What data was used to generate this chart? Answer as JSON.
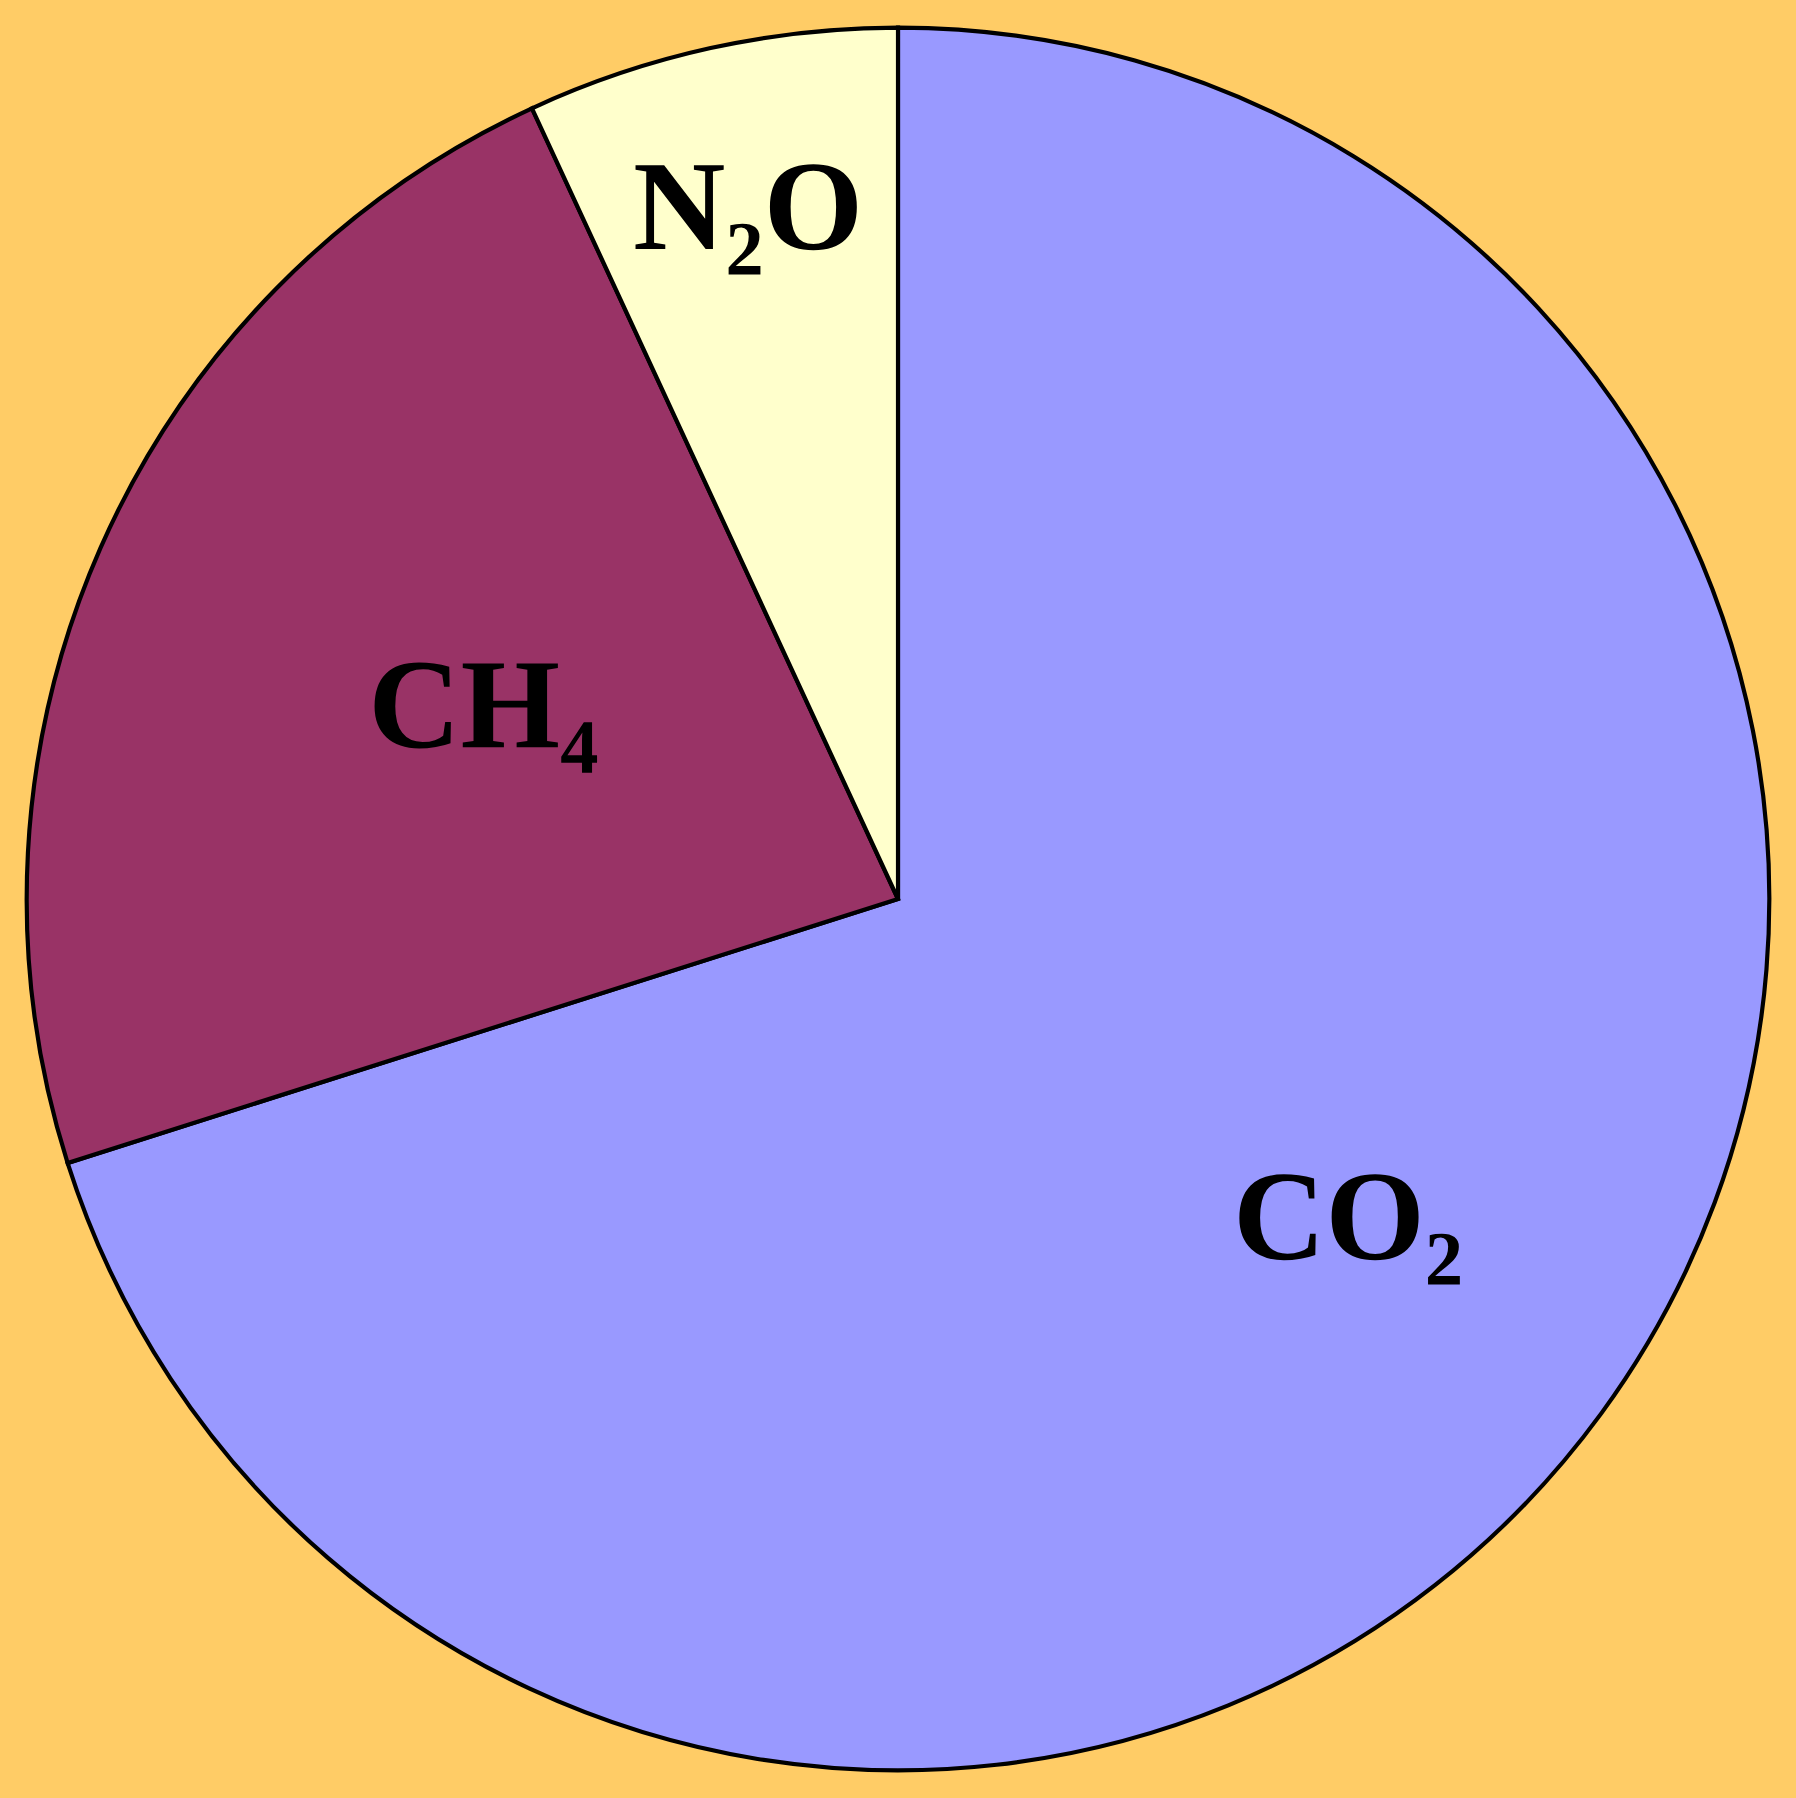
{
  "chart_data": {
    "type": "pie",
    "categories": [
      "CO₂",
      "CH₄",
      "N₂O"
    ],
    "values": [
      70.1,
      23.0,
      6.9
    ],
    "colors": [
      "#9999ff",
      "#993366",
      "#ffffcc"
    ],
    "legend": false
  }
}
